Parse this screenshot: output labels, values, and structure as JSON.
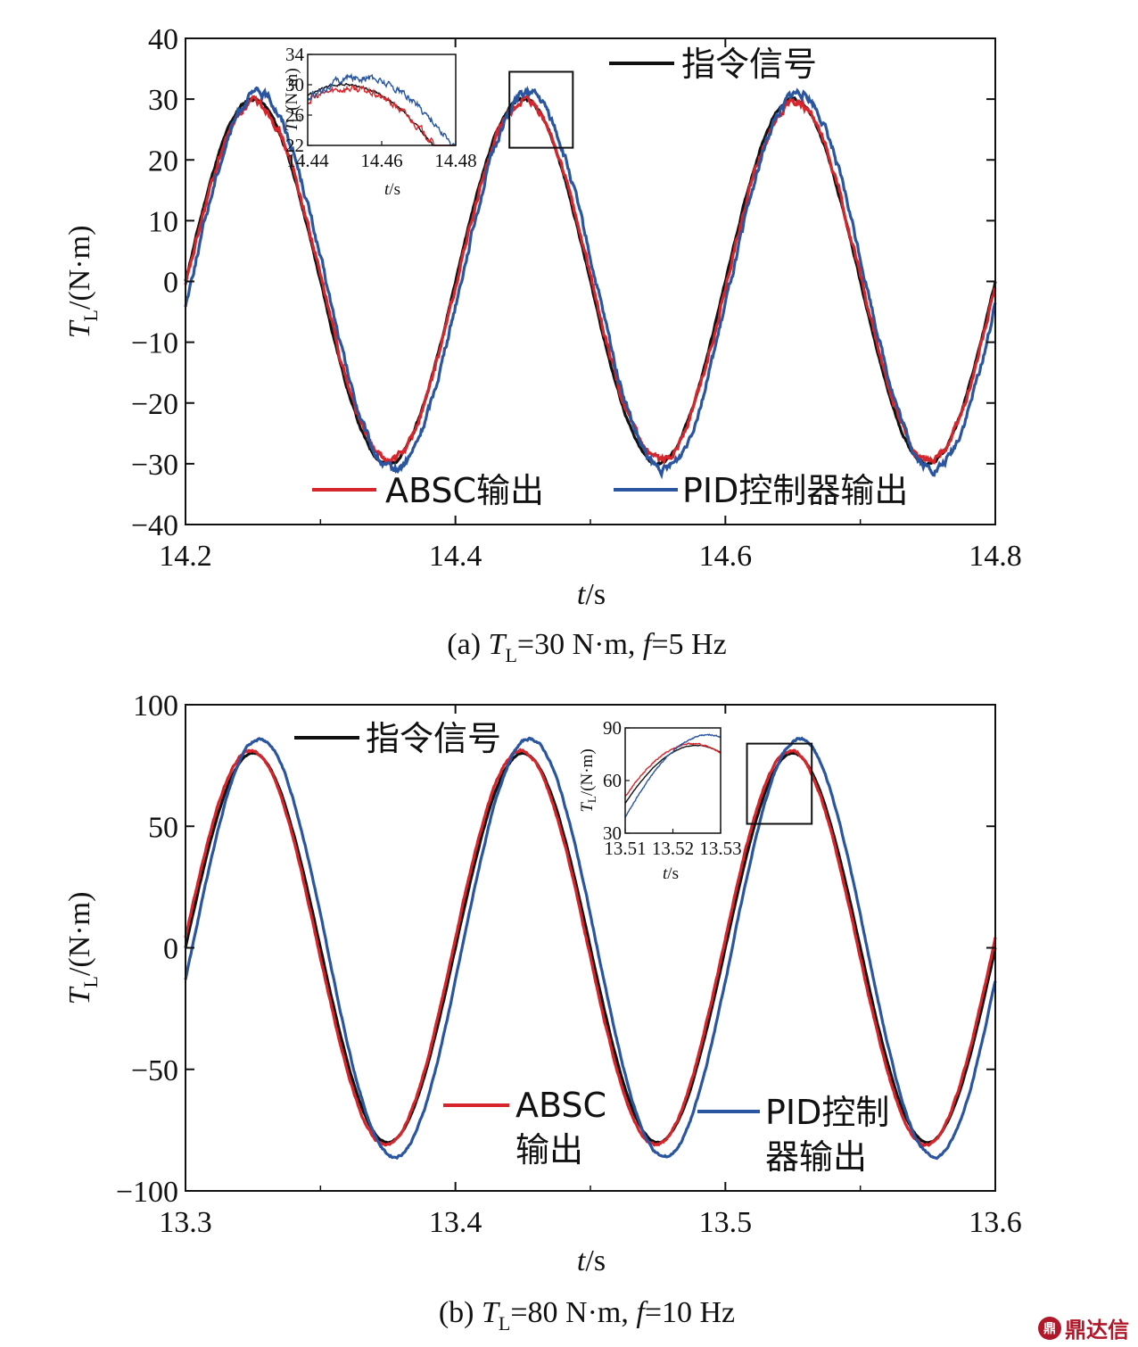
{
  "chart_data": [
    {
      "id": "a",
      "type": "line",
      "caption": "(a) T_L=30 N·m, f=5 Hz",
      "xlabel": "t/s",
      "ylabel": "T_L/(N·m)",
      "xlim": [
        14.2,
        14.8
      ],
      "ylim": [
        -40,
        40
      ],
      "xticks": [
        14.2,
        14.4,
        14.6,
        14.8
      ],
      "xtick_labels": [
        "14.2",
        "14.4",
        "14.6",
        "14.8"
      ],
      "yticks": [
        40,
        30,
        20,
        10,
        0,
        -10,
        -20,
        -30,
        -40
      ],
      "ytick_labels": [
        "40",
        "30",
        "20",
        "10",
        "0",
        "−10",
        "−20",
        "−30",
        "−40"
      ],
      "frequency_hz": 5,
      "series": [
        {
          "name": "指令信号",
          "color": "#111111",
          "amplitude": 30,
          "phase_shift_s": 0,
          "noise": 0.35
        },
        {
          "name": "ABSC输出",
          "color": "#d7262b",
          "amplitude": 29.5,
          "phase_shift_s": 0.001,
          "noise": 0.9
        },
        {
          "name": "PID控制器输出",
          "color": "#2a55a0",
          "amplitude": 31,
          "phase_shift_s": 0.004,
          "noise": 1.0
        }
      ],
      "zoom_box": {
        "x": [
          14.44,
          14.487
        ],
        "y": [
          22,
          34.5
        ]
      },
      "inset": {
        "xlim": [
          14.44,
          14.48
        ],
        "ylim": [
          22,
          34
        ],
        "xticks": [
          14.44,
          14.46,
          14.48
        ],
        "xtick_labels": [
          "14.44",
          "14.46",
          "14.48"
        ],
        "yticks": [
          34,
          30,
          26,
          22
        ],
        "ytick_labels": [
          "34",
          "30",
          "26",
          "22"
        ],
        "xlabel": "t/s",
        "ylabel": "T_L/(N·m)"
      }
    },
    {
      "id": "b",
      "type": "line",
      "caption": "(b) T_L=80 N·m, f=10 Hz",
      "xlabel": "t/s",
      "ylabel": "T_L/(N·m)",
      "xlim": [
        13.3,
        13.6
      ],
      "ylim": [
        -100,
        100
      ],
      "xticks": [
        13.3,
        13.4,
        13.5,
        13.6
      ],
      "xtick_labels": [
        "13.3",
        "13.4",
        "13.5",
        "13.6"
      ],
      "yticks": [
        100,
        50,
        0,
        -50,
        -100
      ],
      "ytick_labels": [
        "100",
        "50",
        "0",
        "−50",
        "−100"
      ],
      "frequency_hz": 10,
      "series": [
        {
          "name": "指令信号",
          "color": "#111111",
          "amplitude": 80,
          "phase_shift_s": 0,
          "noise": 0.3
        },
        {
          "name": "ABSC输出",
          "color": "#d7262b",
          "amplitude": 81,
          "phase_shift_s": -0.0008,
          "noise": 0.7
        },
        {
          "name": "PID控制器输出",
          "color": "#2a55a0",
          "amplitude": 86,
          "phase_shift_s": 0.0025,
          "noise": 0.7
        }
      ],
      "zoom_box": {
        "x": [
          13.508,
          13.532
        ],
        "y": [
          51,
          84
        ]
      },
      "inset": {
        "xlim": [
          13.51,
          13.53
        ],
        "ylim": [
          30,
          90
        ],
        "xticks": [
          13.51,
          13.52,
          13.53
        ],
        "xtick_labels": [
          "13.51",
          "13.52",
          "13.53"
        ],
        "yticks": [
          90,
          60,
          30
        ],
        "ytick_labels": [
          "90",
          "60",
          "30"
        ],
        "xlabel": "t/s",
        "ylabel": "T_L/(N·m)"
      }
    }
  ],
  "legend": {
    "a": {
      "command": "指令信号",
      "absc": "ABSC输出",
      "pid": "PID控制器输出"
    },
    "b": {
      "command": "指令信号",
      "absc_line1": "ABSC",
      "absc_line2": "输出",
      "pid_line1": "PID控制",
      "pid_line2": "器输出"
    }
  },
  "labels": {
    "t": "t",
    "s": "/s",
    "T": "T",
    "L": "L",
    "unit": "/(N·m)",
    "cap_a": {
      "pre": "(a) ",
      "T": "T",
      "L": "L",
      "mid": "=30 N·m, ",
      "f": "f",
      "post": "=5 Hz"
    },
    "cap_b": {
      "pre": "(b) ",
      "T": "T",
      "L": "L",
      "mid": "=80 N·m, ",
      "f": "f",
      "post": "=10 Hz"
    }
  },
  "watermark": {
    "icon": "鼎",
    "text": "鼎达信"
  }
}
